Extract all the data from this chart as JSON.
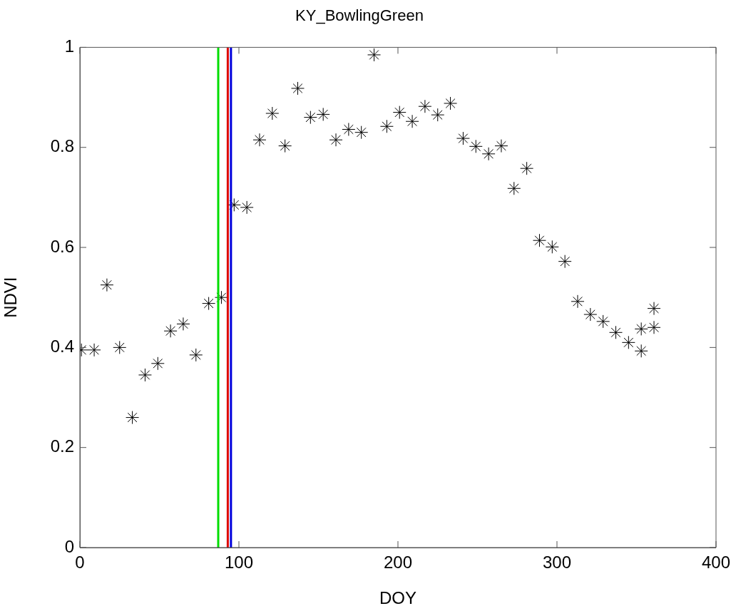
{
  "chart_data": {
    "type": "scatter",
    "title": "KY_BowlingGreen",
    "xlabel": "DOY",
    "ylabel": "NDVI",
    "x": [
      1,
      9,
      17,
      25,
      33,
      41,
      49,
      57,
      65,
      73,
      81,
      89,
      97,
      105,
      113,
      121,
      129,
      137,
      145,
      153,
      161,
      169,
      177,
      185,
      193,
      201,
      209,
      217,
      225,
      233,
      241,
      249,
      257,
      265,
      273,
      281,
      289,
      297,
      305,
      313,
      321,
      329,
      337,
      345,
      353,
      353,
      361,
      361
    ],
    "series": [
      {
        "color": "#000000",
        "values": [
          0.395,
          0.395,
          0.525,
          0.4,
          0.26,
          0.345,
          0.368,
          0.433,
          0.447,
          0.385,
          0.488,
          0.5,
          0.685,
          0.68,
          0.815,
          0.868,
          0.803,
          0.918,
          0.86,
          0.866,
          0.815,
          0.836,
          0.83,
          0.985,
          0.842,
          0.87,
          0.852,
          0.882,
          0.865,
          0.888,
          0.818,
          0.802,
          0.787,
          0.803,
          0.718,
          0.758,
          0.614,
          0.601,
          0.572,
          0.492,
          0.466,
          0.452,
          0.43,
          0.41,
          0.437,
          0.393,
          0.44,
          0.478
        ]
      }
    ],
    "marker": "cross",
    "xlim": [
      0,
      400
    ],
    "xticks": [
      0,
      100,
      200,
      300,
      400
    ],
    "ylim": [
      0,
      1
    ],
    "yticks": [
      0,
      0.2,
      0.4,
      0.6,
      0.8,
      1
    ],
    "grid": false,
    "legend": false,
    "ref_lines": [
      {
        "axis": "x",
        "value": 87,
        "color": "#00dd00"
      },
      {
        "axis": "x",
        "value": 93,
        "color": "#dd0000"
      },
      {
        "axis": "x",
        "value": 95,
        "color": "#0000dd"
      }
    ]
  }
}
